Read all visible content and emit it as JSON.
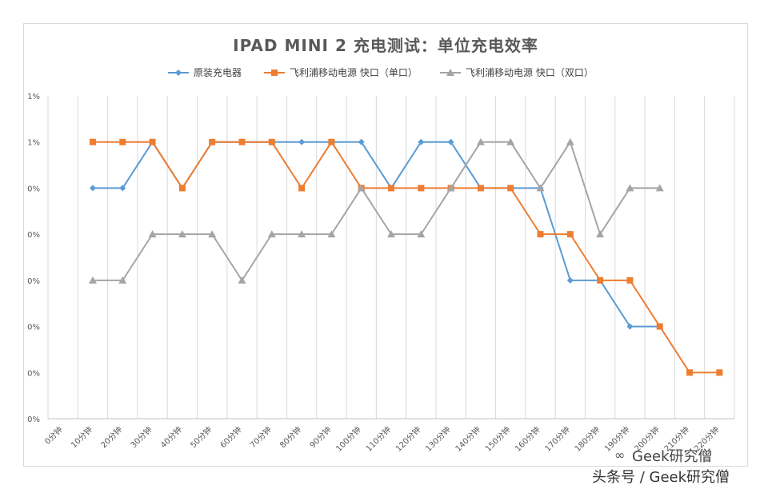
{
  "chart_data": {
    "type": "line",
    "title": "IPAD MINI 2 充电测试：单位充电效率",
    "categories": [
      "0分钟",
      "10分钟",
      "20分钟",
      "30分钟",
      "40分钟",
      "50分钟",
      "60分钟",
      "70分钟",
      "80分钟",
      "90分钟",
      "100分钟",
      "110分钟",
      "120分钟",
      "130分钟",
      "140分钟",
      "150分钟",
      "160分钟",
      "170分钟",
      "180分钟",
      "190分钟",
      "200分钟",
      "210分钟",
      "220分钟"
    ],
    "y_tick_labels": [
      "0%",
      "0%",
      "0%",
      "0%",
      "0%",
      "0%",
      "1%",
      "1%"
    ],
    "ylim": [
      0,
      7
    ],
    "grid": "vertical",
    "legend": "top",
    "series": [
      {
        "name": "原装充电器",
        "color": "#5b9bd5",
        "marker": "diamond",
        "values": [
          null,
          5,
          5,
          6,
          5,
          6,
          6,
          6,
          6,
          6,
          6,
          5,
          6,
          6,
          5,
          5,
          5,
          3,
          3,
          2,
          2,
          null,
          null
        ]
      },
      {
        "name": "飞利浦移动电源 快口（单口）",
        "color": "#ed7d31",
        "marker": "square",
        "values": [
          null,
          6,
          6,
          6,
          5,
          6,
          6,
          6,
          5,
          6,
          5,
          5,
          5,
          5,
          5,
          5,
          4,
          4,
          3,
          3,
          2,
          1,
          1
        ]
      },
      {
        "name": "飞利浦移动电源 快口（双口）",
        "color": "#a5a5a5",
        "marker": "triangle",
        "values": [
          null,
          3,
          3,
          4,
          4,
          4,
          3,
          4,
          4,
          4,
          5,
          4,
          4,
          5,
          6,
          6,
          5,
          6,
          4,
          5,
          5,
          null,
          null
        ]
      }
    ]
  },
  "watermark": {
    "brand": "Geek研究僧",
    "footer": "头条号 / Geek研究僧"
  }
}
